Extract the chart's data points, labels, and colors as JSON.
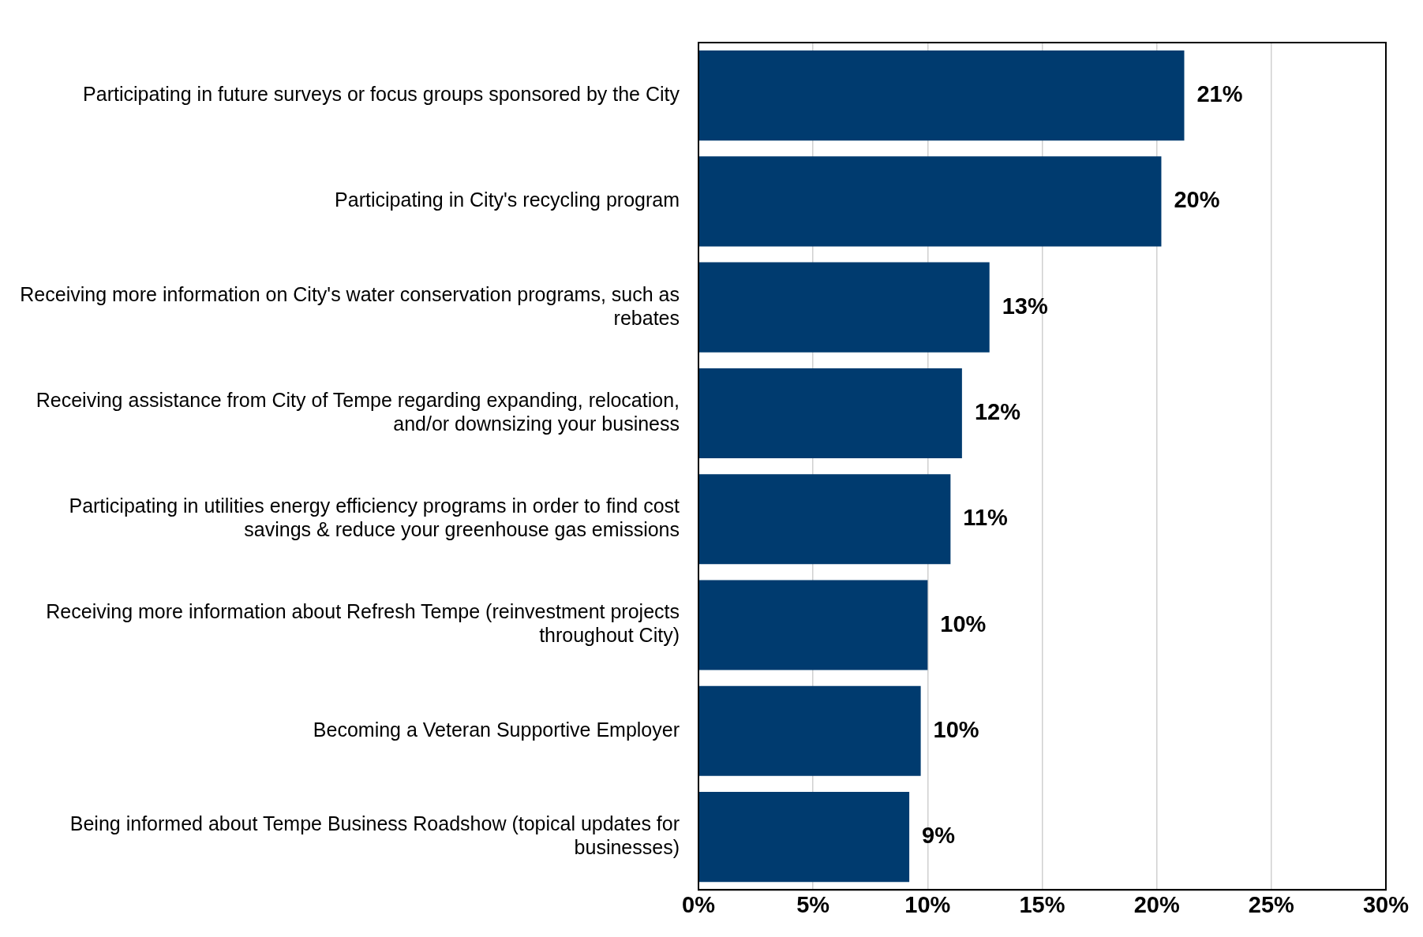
{
  "chart_data": {
    "type": "bar",
    "orientation": "horizontal",
    "categories": [
      "Participating in future surveys or focus groups sponsored by the City",
      "Participating in City's recycling program",
      "Receiving more information on City's water conservation programs, such as rebates",
      "Receiving assistance from City of Tempe regarding expanding, relocation, and/or downsizing your business",
      "Participating in utilities energy efficiency programs in order to find cost savings & reduce your greenhouse gas emissions",
      "Receiving more information about Refresh Tempe (reinvestment projects throughout City)",
      "Becoming a Veteran Supportive Employer",
      "Being informed about Tempe Business Roadshow (topical updates for businesses)"
    ],
    "values": [
      21.2,
      20.2,
      12.7,
      11.5,
      11.0,
      10.0,
      9.7,
      9.2
    ],
    "value_labels": [
      "21%",
      "20%",
      "13%",
      "12%",
      "11%",
      "10%",
      "10%",
      "9%"
    ],
    "color": "#003b6f",
    "xlim": [
      0,
      30
    ],
    "xticks": [
      {
        "value": 0,
        "label": "0%"
      },
      {
        "value": 5,
        "label": "5%"
      },
      {
        "value": 10,
        "label": "10%"
      },
      {
        "value": 15,
        "label": "15%"
      },
      {
        "value": 20,
        "label": "20%"
      },
      {
        "value": 25,
        "label": "25%"
      },
      {
        "value": 30,
        "label": "30%"
      }
    ],
    "grid": "x",
    "legend": false
  }
}
